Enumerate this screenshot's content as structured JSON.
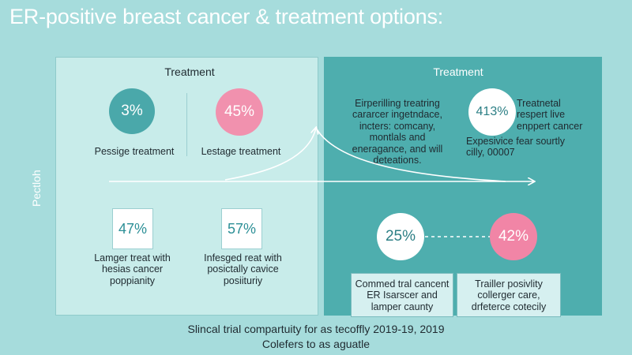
{
  "title": "ER-positive breast cancer & treatment options:",
  "side_label": "Pectloh",
  "left": {
    "heading": "Treatment",
    "top_items": [
      {
        "value": "3%",
        "label": "Pessige treatment"
      },
      {
        "value": "45%",
        "label": "Lestage treatment"
      }
    ],
    "bottom_items": [
      {
        "value": "47%",
        "label_lines": [
          "Lamger treat with",
          "hesias cancer",
          "poppianity"
        ]
      },
      {
        "value": "57%",
        "label_lines": [
          "Infesged reat with",
          "posictally cavice",
          "posiituriy"
        ]
      }
    ]
  },
  "right": {
    "heading": "Treatment",
    "description_lines": [
      "Eirperilling treatring",
      "cararcer ingetndace,",
      "incters: comcany,",
      "montlals and",
      "eneragance, and will",
      "deteations."
    ],
    "highlight": {
      "value": "413%",
      "label_lines": [
        "Treatnetal",
        "respert live",
        "enppert cancer"
      ],
      "sub_lines": [
        "Expesivice fear sourtly",
        "cilly, 00007"
      ]
    },
    "bottom_items": [
      {
        "value": "25%",
        "caption_lines": [
          "Commed tral cancent",
          "ER Isarscer and",
          "lamper caunty"
        ]
      },
      {
        "value": "42%",
        "caption_lines": [
          "Trailler posivlity",
          "collerger care,",
          "drfeterce cotecily"
        ]
      }
    ]
  },
  "footer": {
    "line1": "Slincal trial compartuity for as tecoffly 2019-19, 2019",
    "line2": "Colefers to as aguatle"
  },
  "colors": {
    "teal": "#4aa8aa",
    "pink": "#f191ae",
    "panel_right": "#4eaeae",
    "background": "#a6dcdc"
  }
}
